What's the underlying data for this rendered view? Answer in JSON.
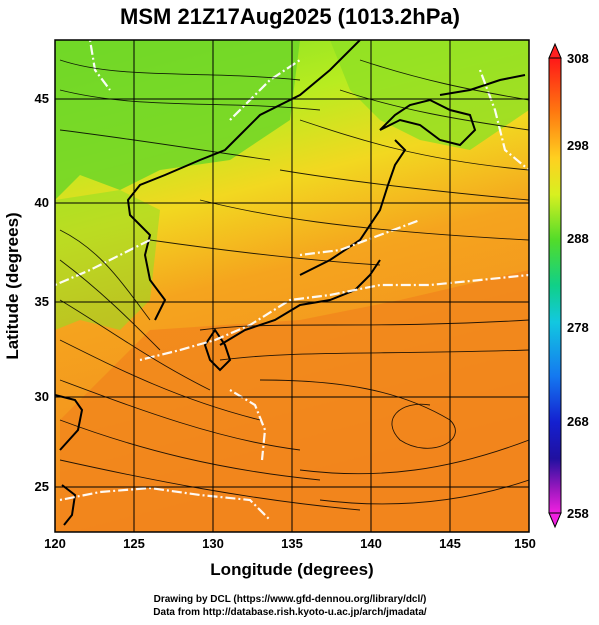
{
  "title": "MSM 21Z17Aug2025 (1013.2hPa)",
  "credits": {
    "line1": "Drawing by DCL (https://www.gfd-dennou.org/library/dcl/)",
    "line2": "Data from http://database.rish.kyoto-u.ac.jp/arch/jmadata/"
  },
  "map": {
    "x_axis": {
      "label": "Longitude (degrees)",
      "ticks": [
        "120",
        "125",
        "130",
        "135",
        "140",
        "145",
        "150"
      ]
    },
    "y_axis": {
      "label": "Latitude  (degrees)",
      "ticks": [
        "25",
        "30",
        "35",
        "40",
        "45"
      ]
    },
    "lon_range": [
      120,
      150
    ],
    "lat_range": [
      22.4,
      47.6
    ],
    "gridlines": true
  },
  "colorbar": {
    "ticks": [
      "308",
      "298",
      "288",
      "278",
      "268",
      "258"
    ],
    "colors": [
      "#ff2020",
      "#ff7a10",
      "#ffb020",
      "#f6e020",
      "#d2f21e",
      "#86ec1e",
      "#22d24a",
      "#10d08a",
      "#12c8d8",
      "#1486f0",
      "#1838e0",
      "#1010b0",
      "#8a18c8",
      "#e01ed8"
    ]
  },
  "colors": {
    "warm": "#f3871e",
    "mild": "#f7c21e",
    "cool": "#6fe024"
  }
}
